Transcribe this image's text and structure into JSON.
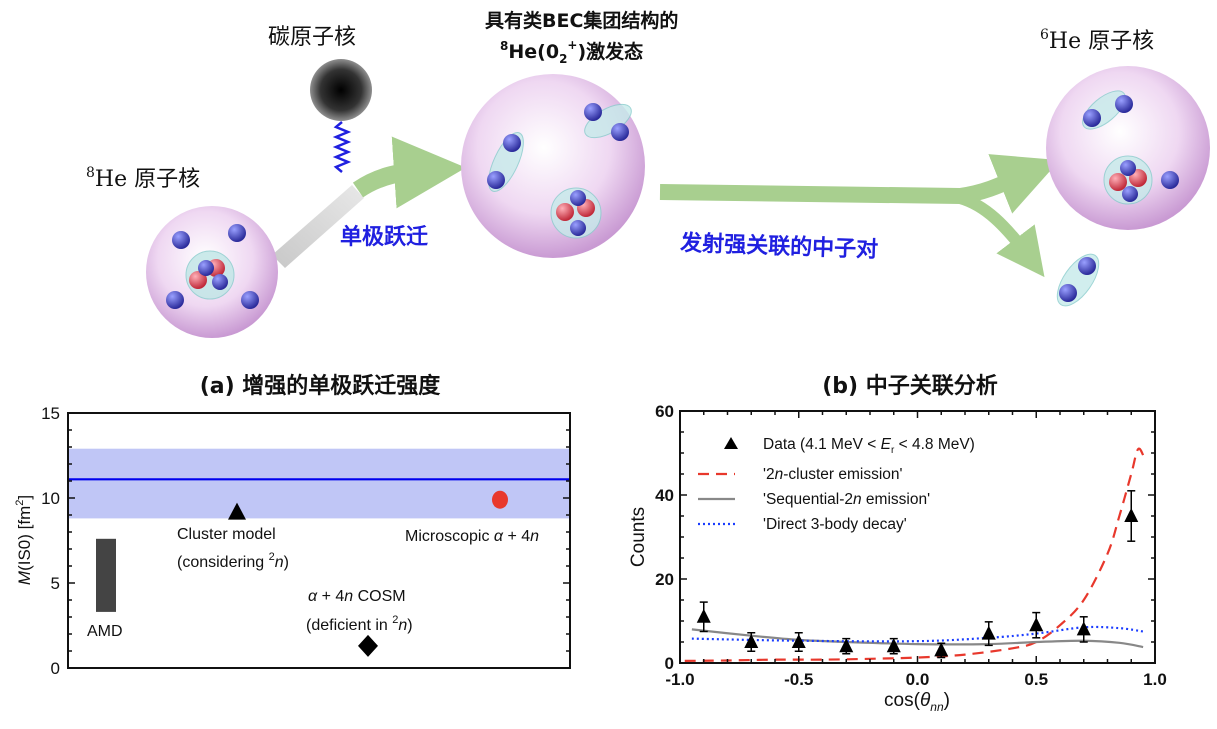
{
  "diagram": {
    "carbon_label": "碳原子核",
    "he8_label": {
      "sup": "8",
      "text": "He 原子核"
    },
    "excited_label_line1": "具有类BEC集团结构的",
    "excited_label_line2": {
      "sup": "8",
      "he": "He(0",
      "sub": "2",
      "plus": "+",
      "rest": ")激发态"
    },
    "he6_label": {
      "sup": "6",
      "text": "He 原子核"
    },
    "monopole_label": "单极跃迁",
    "emission_label": "发射强关联的中子对",
    "colors": {
      "proton": "#e04050",
      "neutron": "#3a3ab0",
      "nucleus": "#e6c6ec",
      "arrow": "#a8cf8f",
      "text_blue": "#2020e0"
    }
  },
  "chart_data": [
    {
      "type": "scatter",
      "title": "(a) 增强的单极跃迁强度",
      "ylabel": {
        "italic": "M",
        "text": "(IS0) [fm",
        "sup": "2",
        "end": "]"
      },
      "xlabel": "",
      "ylim": [
        0,
        15
      ],
      "yticks": [
        "0",
        "5",
        "10",
        "15"
      ],
      "experiment": {
        "value": 11.1,
        "band": [
          8.8,
          12.9
        ],
        "color": "#0000ee",
        "band_color": "#c0c6f6"
      },
      "points": [
        {
          "name": "AMD",
          "type": "bar",
          "range": [
            3.3,
            7.6
          ],
          "color": "#444444",
          "label": "AMD"
        },
        {
          "name": "Cluster model",
          "type": "triangle",
          "value": 9.2,
          "color": "#000000",
          "label_line1": "Cluster model",
          "label_line2": {
            "text": "(considering ",
            "sup": "2",
            "italic": "n",
            "end": ")"
          }
        },
        {
          "name": "α + 4n COSM",
          "type": "diamond",
          "value": 1.3,
          "color": "#000000",
          "label_line1": {
            "alpha": "α",
            "text": " + 4",
            "italic": "n",
            "end": " COSM"
          },
          "label_line2": {
            "text": "(deficient in ",
            "sup": "2",
            "italic": "n",
            "end": ")"
          }
        },
        {
          "name": "Microscopic α + 4n",
          "type": "circle",
          "value": 9.9,
          "color": "#e8382c",
          "label": {
            "text": "Microscopic ",
            "alpha": "α",
            "plus": " + 4",
            "italic": "n"
          }
        }
      ]
    },
    {
      "type": "line",
      "title": "(b) 中子关联分析",
      "xlabel": {
        "text": "cos(",
        "italic": "θ",
        "sub": "nn",
        "end": ")"
      },
      "ylabel": "Counts",
      "xlim": [
        -1.0,
        1.0
      ],
      "ylim": [
        0,
        60
      ],
      "xticks": [
        "-1.0",
        "-0.5",
        "0.0",
        "0.5",
        "1.0"
      ],
      "yticks": [
        "0",
        "20",
        "40",
        "60"
      ],
      "legend_position": "top-left",
      "data": {
        "name": {
          "text": "Data (4.1 MeV < ",
          "italic": "E",
          "sub": "r",
          "end": " < 4.8 MeV)"
        },
        "x": [
          -0.9,
          -0.7,
          -0.5,
          -0.3,
          -0.1,
          0.1,
          0.3,
          0.5,
          0.7,
          0.9
        ],
        "y": [
          11,
          5,
          5,
          4,
          4,
          3,
          7,
          9,
          8,
          35
        ],
        "err": [
          3.5,
          2.2,
          2.2,
          1.8,
          1.8,
          1.7,
          2.8,
          3,
          3,
          6
        ]
      },
      "series": [
        {
          "name": {
            "pre": "'2",
            "italic": "n",
            "end": "-cluster emission'"
          },
          "style": "dashed",
          "color": "#e8382c",
          "x": [
            -0.98,
            -0.8,
            -0.6,
            -0.4,
            -0.2,
            0.0,
            0.2,
            0.4,
            0.5,
            0.6,
            0.7,
            0.8,
            0.85,
            0.9,
            0.93,
            0.96
          ],
          "y": [
            0.5,
            0.6,
            0.8,
            0.8,
            1.0,
            1.3,
            2.0,
            3.5,
            5,
            9,
            15,
            26,
            35,
            45,
            51,
            48
          ]
        },
        {
          "name": {
            "pre": "'Sequential-2",
            "italic": "n",
            "end": " emission'"
          },
          "style": "solid",
          "color": "#888888",
          "x": [
            -0.95,
            -0.7,
            -0.5,
            -0.3,
            0.0,
            0.3,
            0.5,
            0.7,
            0.85,
            0.95
          ],
          "y": [
            8,
            6.5,
            5.5,
            5,
            4.5,
            4.5,
            5,
            5.3,
            4.8,
            3.8
          ]
        },
        {
          "name": {
            "pre": "'Direct 3-body decay'",
            "italic": "",
            "end": ""
          },
          "style": "dotted",
          "color": "#1a3cff",
          "x": [
            -0.95,
            -0.5,
            0.0,
            0.3,
            0.5,
            0.7,
            0.85,
            0.95
          ],
          "y": [
            5.8,
            5.3,
            5.2,
            6.0,
            7.0,
            8.5,
            8.3,
            7.5
          ]
        }
      ]
    }
  ]
}
